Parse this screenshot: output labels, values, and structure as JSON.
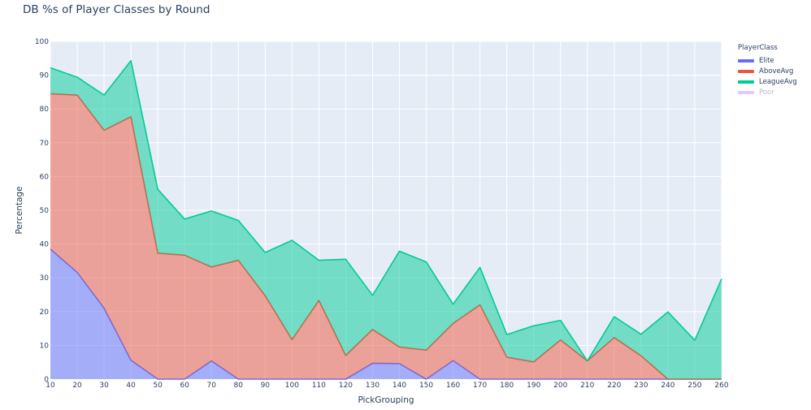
{
  "chart_data": {
    "type": "area",
    "title": "DB %s of Player Classes by Round",
    "xlabel": "PickGrouping",
    "ylabel": "Percentage",
    "ylim": [
      0,
      100
    ],
    "xlim": [
      10,
      260
    ],
    "grid": true,
    "stacked": true,
    "legend_position": "right",
    "legend_title": "PlayerClass",
    "x": [
      10,
      20,
      30,
      40,
      50,
      60,
      70,
      80,
      90,
      100,
      110,
      120,
      130,
      140,
      150,
      160,
      170,
      180,
      190,
      200,
      210,
      220,
      230,
      240,
      250,
      260
    ],
    "x_ticks": [
      "10",
      "20",
      "30",
      "40",
      "50",
      "60",
      "70",
      "80",
      "90",
      "100",
      "110",
      "120",
      "130",
      "140",
      "150",
      "160",
      "170",
      "180",
      "190",
      "200",
      "210",
      "220",
      "230",
      "240",
      "250",
      "260"
    ],
    "y_ticks": [
      "0",
      "10",
      "20",
      "30",
      "40",
      "50",
      "60",
      "70",
      "80",
      "90",
      "100"
    ],
    "series": [
      {
        "name": "Elite",
        "color": "#636efa",
        "fill": "rgba(99,110,250,0.5)",
        "values": [
          38.5,
          31.6,
          21.0,
          5.6,
          0,
          0,
          5.4,
          0,
          0,
          0,
          0,
          0,
          4.7,
          4.6,
          0,
          5.5,
          0,
          0,
          0,
          0,
          0,
          0,
          0,
          0,
          0,
          0
        ]
      },
      {
        "name": "AboveAvg",
        "color": "#ef553b",
        "fill": "rgba(239,85,59,0.5)",
        "values": [
          46.0,
          52.5,
          52.7,
          72.1,
          37.3,
          36.7,
          27.8,
          35.2,
          24.7,
          11.7,
          23.3,
          7.0,
          10.0,
          4.9,
          8.6,
          11.0,
          22.0,
          6.5,
          5.1,
          11.6,
          5.4,
          12.3,
          6.9,
          0,
          0,
          0
        ]
      },
      {
        "name": "LeagueAvg",
        "color": "#00cc96",
        "fill": "rgba(0,204,150,0.5)",
        "values": [
          7.7,
          5.3,
          10.4,
          16.6,
          18.9,
          10.7,
          16.6,
          11.8,
          12.8,
          29.4,
          11.9,
          28.5,
          10.1,
          28.4,
          26.1,
          5.7,
          11.1,
          6.7,
          10.7,
          5.8,
          0,
          6.2,
          6.4,
          19.9,
          11.5,
          29.7
        ]
      },
      {
        "name": "Poor",
        "color": "#ab63fa",
        "fill": "rgba(171,99,250,0.5)",
        "hidden": true,
        "values": []
      }
    ],
    "cumulative_tops": {
      "Elite": [
        38.5,
        31.6,
        21.0,
        5.6,
        0,
        0,
        5.4,
        0,
        0,
        0,
        0,
        0,
        4.7,
        4.6,
        0,
        5.5,
        0,
        0,
        0,
        0,
        0,
        0,
        0,
        0,
        0,
        0
      ],
      "AboveAvg": [
        84.5,
        84.1,
        73.7,
        77.7,
        37.3,
        36.7,
        33.2,
        35.2,
        24.7,
        11.7,
        23.3,
        7.0,
        14.7,
        9.5,
        8.6,
        16.5,
        22.0,
        6.5,
        5.1,
        11.6,
        5.4,
        12.3,
        6.9,
        0,
        0,
        0
      ],
      "LeagueAvg": [
        92.2,
        89.4,
        84.1,
        94.3,
        56.2,
        47.4,
        49.8,
        47.0,
        37.5,
        41.1,
        35.2,
        35.5,
        24.8,
        38.0,
        34.7,
        22.2,
        33.1,
        13.2,
        15.8,
        17.4,
        5.4,
        18.5,
        13.3,
        19.9,
        11.5,
        29.7
      ]
    }
  },
  "legend": {
    "title": "PlayerClass",
    "items": [
      {
        "label": "Elite",
        "color": "#636efa",
        "opacity": 1
      },
      {
        "label": "AboveAvg",
        "color": "#ef553b",
        "opacity": 1
      },
      {
        "label": "LeagueAvg",
        "color": "#00cc96",
        "opacity": 1
      },
      {
        "label": "Poor",
        "color": "#ab63fa",
        "opacity": 0.35
      }
    ]
  },
  "colors": {
    "plot_bg": "#e5ecf6",
    "grid": "#ffffff",
    "text": "#2a3f5f"
  }
}
